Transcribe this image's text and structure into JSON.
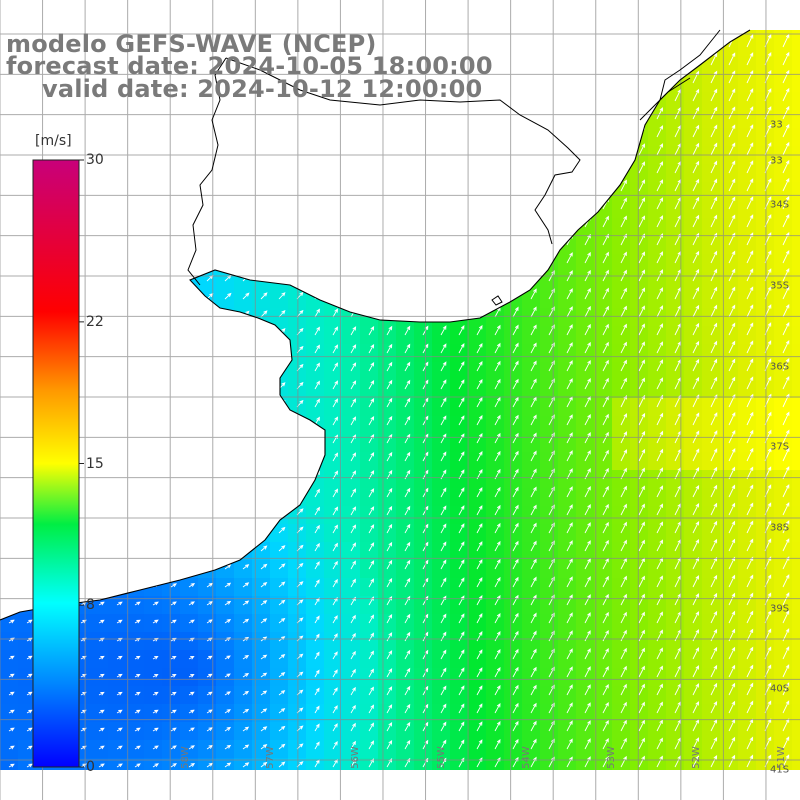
{
  "title": {
    "line1": "modelo GEFS-WAVE (NCEP)",
    "line2": "forecast date: 2024-10-05 18:00:00",
    "line3": "valid date: 2024-10-12 12:00:00"
  },
  "colorbar": {
    "unit": "[m/s]",
    "ticks": [
      {
        "label": "30",
        "value": 30
      },
      {
        "label": "22",
        "value": 22
      },
      {
        "label": "15",
        "value": 15
      },
      {
        "label": "8",
        "value": 8
      },
      {
        "label": "0",
        "value": 0
      }
    ],
    "colors": [
      "#0000ff",
      "#00aaff",
      "#00ffff",
      "#00ee00",
      "#ffff00",
      "#ff8800",
      "#ff0000",
      "#c8007a"
    ]
  },
  "lat_labels": [
    {
      "label": "33",
      "lat": -33
    },
    {
      "label": "33",
      "lat": -33.45
    },
    {
      "label": "34S",
      "lat": -34
    },
    {
      "label": "35S",
      "lat": -35
    },
    {
      "label": "36S",
      "lat": -36
    },
    {
      "label": "37S",
      "lat": -37
    },
    {
      "label": "38S",
      "lat": -38
    },
    {
      "label": "39S",
      "lat": -39
    },
    {
      "label": "40S",
      "lat": -40
    },
    {
      "label": "41S",
      "lat": -41
    }
  ],
  "lon_labels": [
    {
      "label": "58W",
      "lon": -58
    },
    {
      "label": "57W",
      "lon": -57
    },
    {
      "label": "56W",
      "lon": -56
    },
    {
      "label": "55W",
      "lon": -55
    },
    {
      "label": "54W",
      "lon": -54
    },
    {
      "label": "53W",
      "lon": -53
    },
    {
      "label": "52W",
      "lon": -52
    },
    {
      "label": "51W",
      "lon": -51
    }
  ]
}
